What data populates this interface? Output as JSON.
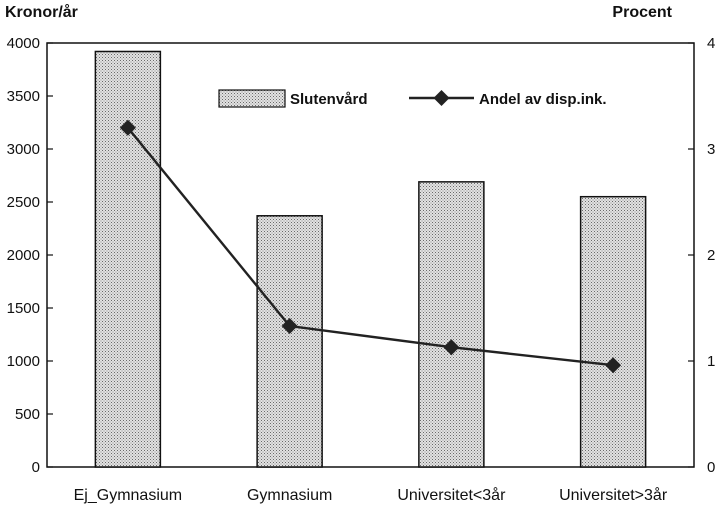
{
  "chart_data": {
    "type": "bar+line",
    "categories": [
      "Ej_Gymnasium",
      "Gymnasium",
      "Universitet<3år",
      "Universitet>3år"
    ],
    "left_axis": {
      "label": "Kronor/år",
      "min": 0,
      "max": 4000,
      "ticks": [
        0,
        500,
        1000,
        1500,
        2000,
        2500,
        3000,
        3500,
        4000
      ]
    },
    "right_axis": {
      "label": "Procent",
      "min": 0,
      "max": 4,
      "ticks": [
        0,
        1,
        2,
        3,
        4
      ]
    },
    "series": [
      {
        "name": "Slutenvård",
        "kind": "bar",
        "axis": "left",
        "values": [
          3920,
          2370,
          2690,
          2550
        ]
      },
      {
        "name": "Andel av disp.ink.",
        "kind": "line",
        "axis": "right",
        "marker": "diamond",
        "values": [
          3.2,
          1.33,
          1.13,
          0.96
        ]
      }
    ],
    "legend": {
      "position": "top-center"
    },
    "grid": false,
    "colors": {
      "bar_fill": "#c8c8c8",
      "line": "#222222",
      "axes": "#111111"
    }
  }
}
